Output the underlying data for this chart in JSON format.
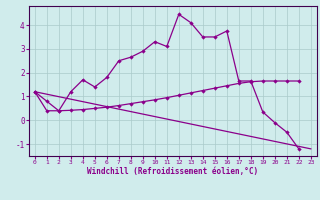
{
  "xlabel": "Windchill (Refroidissement éolien,°C)",
  "x": [
    0,
    1,
    2,
    3,
    4,
    5,
    6,
    7,
    8,
    9,
    10,
    11,
    12,
    13,
    14,
    15,
    16,
    17,
    18,
    19,
    20,
    21,
    22,
    23
  ],
  "line1_x": [
    0,
    1,
    2,
    3,
    4,
    5,
    6,
    7,
    8,
    9,
    10,
    11,
    12,
    13,
    14,
    15,
    16,
    17,
    18,
    19,
    20,
    21,
    22
  ],
  "line1_y": [
    1.2,
    0.8,
    0.4,
    1.2,
    1.7,
    1.4,
    1.8,
    2.5,
    2.65,
    2.9,
    3.3,
    3.1,
    4.45,
    4.1,
    3.5,
    3.5,
    3.75,
    1.65,
    1.65,
    0.35,
    -0.1,
    -0.5,
    -1.2
  ],
  "line2_x": [
    0,
    23
  ],
  "line2_y": [
    1.2,
    -1.2
  ],
  "line3_x": [
    0,
    1,
    2,
    3,
    4,
    5,
    6,
    7,
    8,
    9,
    10,
    11,
    12,
    13,
    14,
    15,
    16,
    17,
    18,
    19,
    20,
    21,
    22
  ],
  "line3_y": [
    1.2,
    0.4,
    0.4,
    0.42,
    0.45,
    0.5,
    0.55,
    0.62,
    0.7,
    0.78,
    0.86,
    0.95,
    1.05,
    1.15,
    1.25,
    1.35,
    1.45,
    1.55,
    1.62,
    1.65,
    1.65,
    1.65,
    1.65
  ],
  "line_color": "#8b008b",
  "bg_color": "#d0ecec",
  "grid_color": "#aacaca",
  "ylim": [
    -1.5,
    4.8
  ],
  "xlim": [
    -0.5,
    23.5
  ],
  "yticks": [
    -1,
    0,
    1,
    2,
    3,
    4
  ],
  "xticks": [
    0,
    1,
    2,
    3,
    4,
    5,
    6,
    7,
    8,
    9,
    10,
    11,
    12,
    13,
    14,
    15,
    16,
    17,
    18,
    19,
    20,
    21,
    22,
    23
  ]
}
